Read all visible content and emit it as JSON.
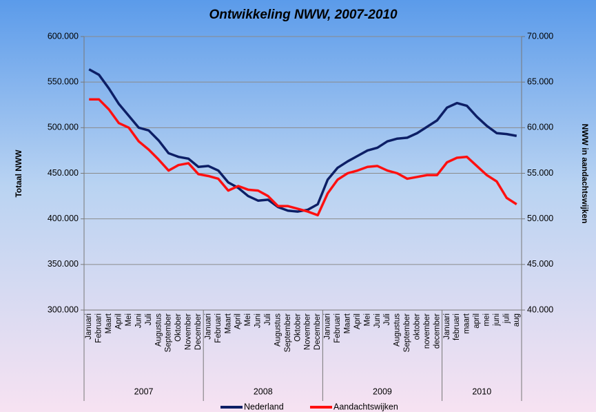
{
  "chart_data": {
    "type": "line",
    "title": "Ontwikkeling NWW, 2007-2010",
    "y_label": "Totaal NWW",
    "y2_label": "NWW in aandachtswijken",
    "categories": [
      "Januari",
      "Februari",
      "Maart",
      "April",
      "Mei",
      "Juni",
      "Juli",
      "Augustus",
      "September",
      "Oktober",
      "November",
      "December",
      "Januari",
      "Februari",
      "Maart",
      "April",
      "Mei",
      "Juni",
      "Juli",
      "Augustus",
      "September",
      "Oktober",
      "November",
      "December",
      "Januari",
      "Februari",
      "Maart",
      "April",
      "Mei",
      "Juni",
      "Juli",
      "Augustus",
      "September",
      "oktober",
      "november",
      "december",
      "Januari",
      "februari",
      "maart",
      "april",
      "mei",
      "juni",
      "juli",
      "aug"
    ],
    "years": [
      "2007",
      "2008",
      "2009",
      "2010"
    ],
    "series": [
      {
        "name": "Nederland",
        "color": "#0d1f66",
        "axis": "y",
        "values": [
          564000,
          558000,
          543000,
          526000,
          513000,
          500000,
          497000,
          486000,
          472000,
          468000,
          466000,
          457000,
          458000,
          453000,
          440000,
          434000,
          425000,
          420000,
          421000,
          413000,
          409000,
          408000,
          410000,
          416000,
          443000,
          456000,
          463000,
          469000,
          475000,
          478000,
          485000,
          488000,
          489000,
          494000,
          501000,
          508000,
          522000,
          527000,
          524000,
          512000,
          502000,
          494000,
          493000,
          491000
        ]
      },
      {
        "name": "Aandachtswijken",
        "color": "#ff1010",
        "axis": "y2",
        "values": [
          63100,
          63100,
          62000,
          60500,
          60000,
          58500,
          57600,
          56500,
          55300,
          55900,
          56100,
          54900,
          54700,
          54400,
          53100,
          53600,
          53200,
          53100,
          52500,
          51400,
          51400,
          51100,
          50800,
          50400,
          52800,
          54300,
          55000,
          55300,
          55700,
          55800,
          55300,
          55000,
          54400,
          54600,
          54800,
          54800,
          56200,
          56700,
          56800,
          55800,
          54800,
          54100,
          52300,
          51600
        ]
      }
    ],
    "ylim": [
      300000,
      600000
    ],
    "yticks": [
      {
        "value": 300000,
        "label": "300.000"
      },
      {
        "value": 350000,
        "label": "350.000"
      },
      {
        "value": 400000,
        "label": "400.000"
      },
      {
        "value": 450000,
        "label": "450.000"
      },
      {
        "value": 500000,
        "label": "500.000"
      },
      {
        "value": 550000,
        "label": "550.000"
      },
      {
        "value": 600000,
        "label": "600.000"
      }
    ],
    "y2lim": [
      40000,
      70000
    ],
    "y2ticks": [
      {
        "value": 40000,
        "label": "40.000"
      },
      {
        "value": 45000,
        "label": "45.000"
      },
      {
        "value": 50000,
        "label": "50.000"
      },
      {
        "value": 55000,
        "label": "55.000"
      },
      {
        "value": 60000,
        "label": "60.000"
      },
      {
        "value": 65000,
        "label": "65.000"
      },
      {
        "value": 70000,
        "label": "70.000"
      }
    ],
    "grid": true,
    "legend": "bottom"
  }
}
